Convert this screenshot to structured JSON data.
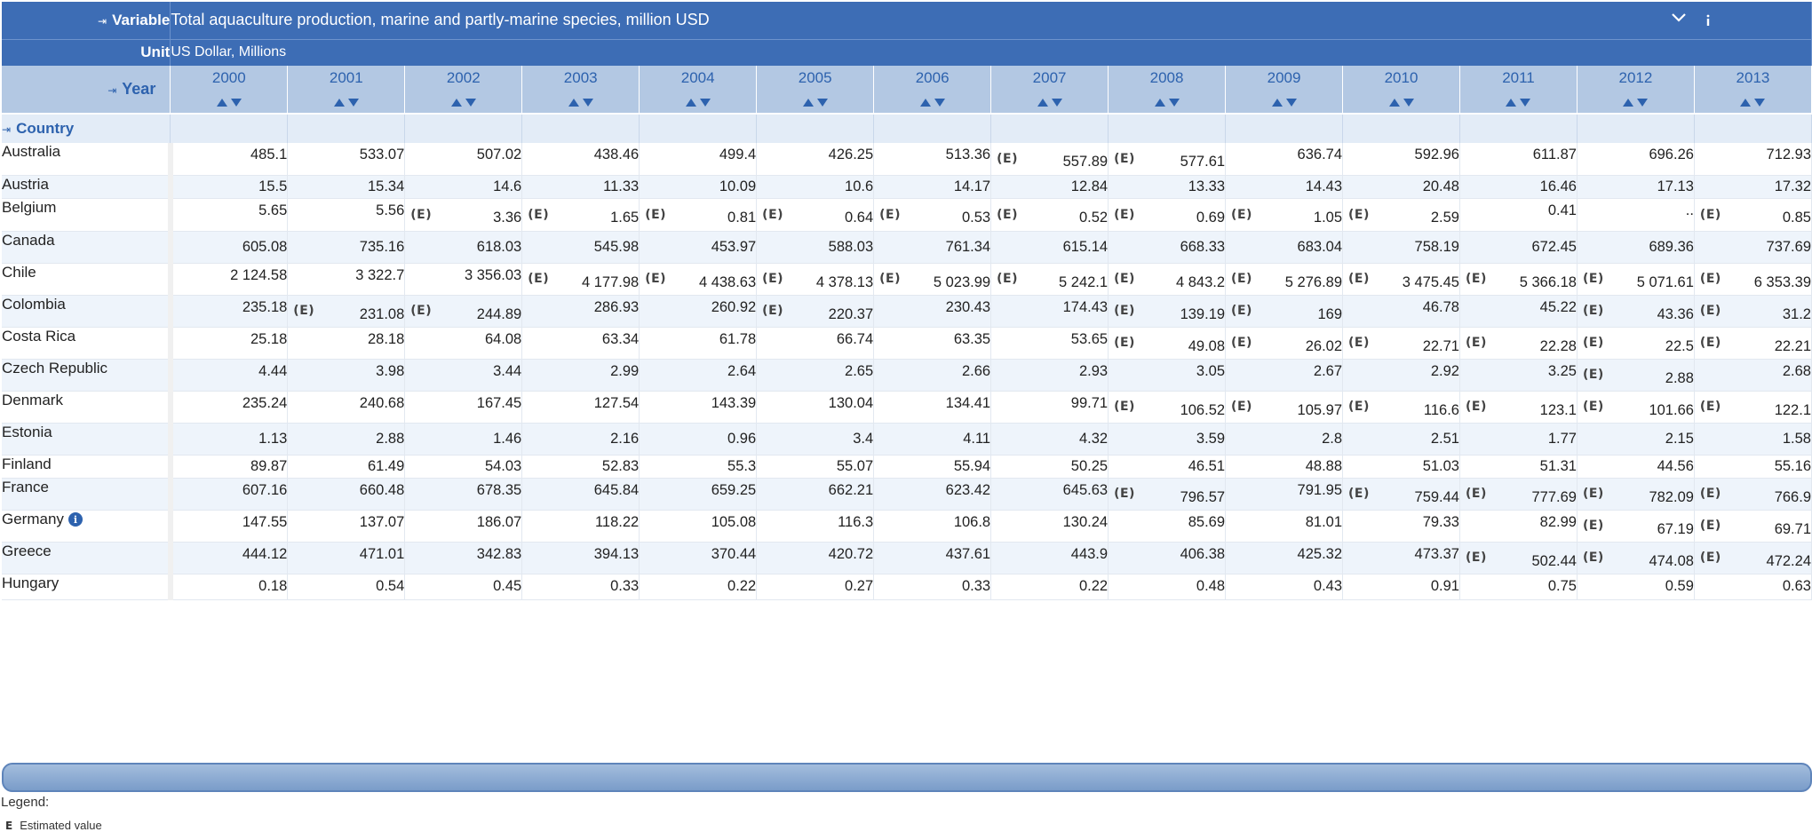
{
  "header": {
    "variable_label": "Variable",
    "variable_value": "Total aquaculture production, marine and partly-marine species, million USD",
    "unit_label": "Unit",
    "unit_value": "US Dollar, Millions",
    "year_label": "Year",
    "country_label": "Country"
  },
  "years": [
    "2000",
    "2001",
    "2002",
    "2003",
    "2004",
    "2005",
    "2006",
    "2007",
    "2008",
    "2009",
    "2010",
    "2011",
    "2012",
    "2013"
  ],
  "rows": [
    {
      "country": "Australia",
      "values": [
        "485.1",
        "533.07",
        "507.02",
        "438.46",
        "499.4",
        "426.25",
        "513.36",
        "557.89",
        "577.61",
        "636.74",
        "592.96",
        "611.87",
        "696.26",
        "712.93"
      ],
      "flags": [
        0,
        0,
        0,
        0,
        0,
        0,
        0,
        1,
        1,
        0,
        0,
        0,
        0,
        0
      ]
    },
    {
      "country": "Austria",
      "values": [
        "15.5",
        "15.34",
        "14.6",
        "11.33",
        "10.09",
        "10.6",
        "14.17",
        "12.84",
        "13.33",
        "14.43",
        "20.48",
        "16.46",
        "17.13",
        "17.32"
      ],
      "flags": [
        0,
        0,
        0,
        0,
        0,
        0,
        0,
        0,
        0,
        0,
        0,
        0,
        0,
        0
      ]
    },
    {
      "country": "Belgium",
      "values": [
        "5.65",
        "5.56",
        "3.36",
        "1.65",
        "0.81",
        "0.64",
        "0.53",
        "0.52",
        "0.69",
        "1.05",
        "2.59",
        "0.41",
        "..",
        "0.85"
      ],
      "flags": [
        0,
        0,
        1,
        1,
        1,
        1,
        1,
        1,
        1,
        1,
        1,
        0,
        0,
        1
      ]
    },
    {
      "country": "Canada",
      "values": [
        "605.08",
        "735.16",
        "618.03",
        "545.98",
        "453.97",
        "588.03",
        "761.34",
        "615.14",
        "668.33",
        "683.04",
        "758.19",
        "672.45",
        "689.36",
        "737.69"
      ],
      "flags": [
        0,
        0,
        0,
        0,
        0,
        0,
        0,
        0,
        0,
        0,
        0,
        0,
        0,
        0
      ]
    },
    {
      "country": "Chile",
      "values": [
        "2 124.58",
        "3 322.7",
        "3 356.03",
        "4 177.98",
        "4 438.63",
        "4 378.13",
        "5 023.99",
        "5 242.1",
        "4 843.2",
        "5 276.89",
        "3 475.45",
        "5 366.18",
        "5 071.61",
        "6 353.39"
      ],
      "flags": [
        0,
        0,
        0,
        1,
        1,
        1,
        1,
        1,
        1,
        1,
        1,
        1,
        1,
        1
      ]
    },
    {
      "country": "Colombia",
      "values": [
        "235.18",
        "231.08",
        "244.89",
        "286.93",
        "260.92",
        "220.37",
        "230.43",
        "174.43",
        "139.19",
        "169",
        "46.78",
        "45.22",
        "43.36",
        "31.2"
      ],
      "flags": [
        0,
        1,
        1,
        0,
        0,
        1,
        0,
        0,
        1,
        1,
        0,
        0,
        1,
        1
      ]
    },
    {
      "country": "Costa Rica",
      "values": [
        "25.18",
        "28.18",
        "64.08",
        "63.34",
        "61.78",
        "66.74",
        "63.35",
        "53.65",
        "49.08",
        "26.02",
        "22.71",
        "22.28",
        "22.5",
        "22.21"
      ],
      "flags": [
        0,
        0,
        0,
        0,
        0,
        0,
        0,
        0,
        1,
        1,
        1,
        1,
        1,
        1
      ]
    },
    {
      "country": "Czech Republic",
      "values": [
        "4.44",
        "3.98",
        "3.44",
        "2.99",
        "2.64",
        "2.65",
        "2.66",
        "2.93",
        "3.05",
        "2.67",
        "2.92",
        "3.25",
        "2.88",
        "2.68"
      ],
      "flags": [
        0,
        0,
        0,
        0,
        0,
        0,
        0,
        0,
        0,
        0,
        0,
        0,
        1,
        0
      ]
    },
    {
      "country": "Denmark",
      "values": [
        "235.24",
        "240.68",
        "167.45",
        "127.54",
        "143.39",
        "130.04",
        "134.41",
        "99.71",
        "106.52",
        "105.97",
        "116.6",
        "123.1",
        "101.66",
        "122.1"
      ],
      "flags": [
        0,
        0,
        0,
        0,
        0,
        0,
        0,
        0,
        1,
        1,
        1,
        1,
        1,
        1
      ]
    },
    {
      "country": "Estonia",
      "values": [
        "1.13",
        "2.88",
        "1.46",
        "2.16",
        "0.96",
        "3.4",
        "4.11",
        "4.32",
        "3.59",
        "2.8",
        "2.51",
        "1.77",
        "2.15",
        "1.58"
      ],
      "flags": [
        0,
        0,
        0,
        0,
        0,
        0,
        0,
        0,
        0,
        0,
        0,
        0,
        0,
        0
      ]
    },
    {
      "country": "Finland",
      "values": [
        "89.87",
        "61.49",
        "54.03",
        "52.83",
        "55.3",
        "55.07",
        "55.94",
        "50.25",
        "46.51",
        "48.88",
        "51.03",
        "51.31",
        "44.56",
        "55.16"
      ],
      "flags": [
        0,
        0,
        0,
        0,
        0,
        0,
        0,
        0,
        0,
        0,
        0,
        0,
        0,
        0
      ]
    },
    {
      "country": "France",
      "values": [
        "607.16",
        "660.48",
        "678.35",
        "645.84",
        "659.25",
        "662.21",
        "623.42",
        "645.63",
        "796.57",
        "791.95",
        "759.44",
        "777.69",
        "782.09",
        "766.9"
      ],
      "flags": [
        0,
        0,
        0,
        0,
        0,
        0,
        0,
        0,
        1,
        0,
        1,
        1,
        1,
        1
      ]
    },
    {
      "country": "Germany",
      "info": true,
      "values": [
        "147.55",
        "137.07",
        "186.07",
        "118.22",
        "105.08",
        "116.3",
        "106.8",
        "130.24",
        "85.69",
        "81.01",
        "79.33",
        "82.99",
        "67.19",
        "69.71"
      ],
      "flags": [
        0,
        0,
        0,
        0,
        0,
        0,
        0,
        0,
        0,
        0,
        0,
        0,
        1,
        1
      ]
    },
    {
      "country": "Greece",
      "values": [
        "444.12",
        "471.01",
        "342.83",
        "394.13",
        "370.44",
        "420.72",
        "437.61",
        "443.9",
        "406.38",
        "425.32",
        "473.37",
        "502.44",
        "474.08",
        "472.24"
      ],
      "flags": [
        0,
        0,
        0,
        0,
        0,
        0,
        0,
        0,
        0,
        0,
        0,
        1,
        1,
        1
      ]
    },
    {
      "country": "Hungary",
      "values": [
        "0.18",
        "0.54",
        "0.45",
        "0.33",
        "0.22",
        "0.27",
        "0.33",
        "0.22",
        "0.48",
        "0.43",
        "0.91",
        "0.75",
        "0.59",
        "0.63"
      ],
      "flags": [
        0,
        0,
        0,
        0,
        0,
        0,
        0,
        0,
        0,
        0,
        0,
        0,
        0,
        0
      ]
    }
  ],
  "flag_marker": "(E)",
  "legend": {
    "title": "Legend:",
    "code": "E",
    "text": "Estimated value"
  },
  "icons": {
    "pin": "pin-icon",
    "sort_up": "sort-ascending-icon",
    "sort_down": "sort-descending-icon",
    "dropdown": "chevron-down-icon",
    "info": "info-icon"
  },
  "colors": {
    "header_dark": "#3d6db5",
    "header_light": "#b3c8e3",
    "row_alt": "#eef4fb",
    "link_blue": "#2d62ae"
  }
}
